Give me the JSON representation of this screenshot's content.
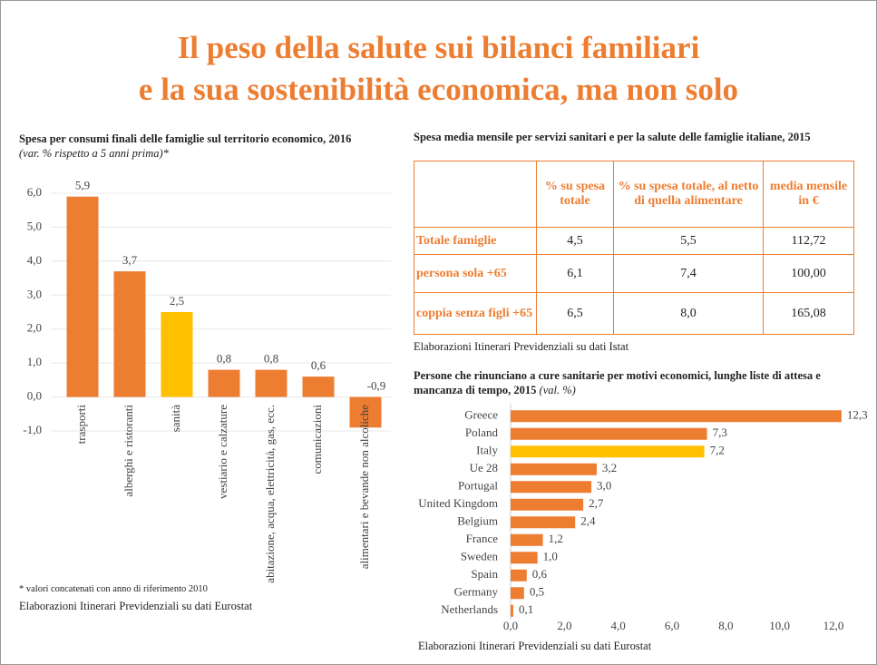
{
  "title": [
    "Il peso della salute sui bilanci familiari",
    "e la sua sostenibilità economica, ma non solo"
  ],
  "chart_data": [
    {
      "type": "bar",
      "title": "Spesa per consumi finali delle famiglie sul territorio economico, 2016",
      "subtitle": "(var. % rispetto a 5 anni prima)*",
      "categories": [
        "trasporti",
        "alberghi e ristoranti",
        "sanità",
        "vestiario e calzature",
        "abitazione, acqua, elettricità, gas, ecc.",
        "comunicazioni",
        "alimentari e bevande non alcoliche"
      ],
      "values": [
        5.9,
        3.7,
        2.5,
        0.8,
        0.8,
        0.6,
        -0.9
      ],
      "value_labels": [
        "5,9",
        "3,7",
        "2,5",
        "0,8",
        "0,8",
        "0,6",
        "-0,9"
      ],
      "colors": [
        "#ed7d31",
        "#ed7d31",
        "#ffc000",
        "#ed7d31",
        "#ed7d31",
        "#ed7d31",
        "#ed7d31"
      ],
      "ylim": [
        -1,
        6
      ],
      "yticks": [
        {
          "value": -1,
          "label": "-1,0"
        },
        {
          "value": 0,
          "label": "0,0"
        },
        {
          "value": 1,
          "label": "1,0"
        },
        {
          "value": 2,
          "label": "2,0"
        },
        {
          "value": 3,
          "label": "3,0"
        },
        {
          "value": 4,
          "label": "4,0"
        },
        {
          "value": 5,
          "label": "5,0"
        },
        {
          "value": 6,
          "label": "6,0"
        }
      ],
      "grid": true,
      "footnote": "* valori concatenati con anno di riferimento 2010",
      "source": "Elaborazioni Itinerari Previdenziali su dati Eurostat"
    },
    {
      "type": "hbar",
      "title": "Persone che rinunciano a cure sanitarie per motivi economici, lunghe liste di attesa e mancanza di tempo, 2015",
      "subtitle": "(val. %)",
      "categories": [
        "Greece",
        "Poland",
        "Italy",
        "Ue 28",
        "Portugal",
        "United Kingdom",
        "Belgium",
        "France",
        "Sweden",
        "Spain",
        "Germany",
        "Netherlands"
      ],
      "values": [
        12.3,
        7.3,
        7.2,
        3.2,
        3.0,
        2.7,
        2.4,
        1.2,
        1.0,
        0.6,
        0.5,
        0.1
      ],
      "value_labels": [
        "12,3",
        "7,3",
        "7,2",
        "3,2",
        "3,0",
        "2,7",
        "2,4",
        "1,2",
        "1,0",
        "0,6",
        "0,5",
        "0,1"
      ],
      "colors": [
        "#ed7d31",
        "#ed7d31",
        "#ffc000",
        "#ed7d31",
        "#ed7d31",
        "#ed7d31",
        "#ed7d31",
        "#ed7d31",
        "#ed7d31",
        "#ed7d31",
        "#ed7d31",
        "#ed7d31"
      ],
      "xlim": [
        0,
        12
      ],
      "xticks": [
        {
          "value": 0,
          "label": "0,0"
        },
        {
          "value": 2,
          "label": "2,0"
        },
        {
          "value": 4,
          "label": "4,0"
        },
        {
          "value": 6,
          "label": "6,0"
        },
        {
          "value": 8,
          "label": "8,0"
        },
        {
          "value": 10,
          "label": "10,0"
        },
        {
          "value": 12,
          "label": "12,0"
        }
      ],
      "source": "Elaborazioni Itinerari Previdenziali su dati Eurostat"
    }
  ],
  "table": {
    "title": "Spesa media mensile per servizi sanitari e per la salute delle famiglie italiane, 2015",
    "columns": [
      "% su spesa totale",
      "% su spesa totale, al netto di quella alimentare",
      "media mensile in €"
    ],
    "rows": [
      {
        "label": "Totale famiglie",
        "values": [
          "4,5",
          "5,5",
          "112,72"
        ]
      },
      {
        "label": "persona sola +65",
        "values": [
          "6,1",
          "7,4",
          "100,00"
        ]
      },
      {
        "label": "coppia senza figli +65",
        "values": [
          "6,5",
          "8,0",
          "165,08"
        ]
      }
    ],
    "source": "Elaborazioni Itinerari Previdenziali su dati Istat"
  }
}
